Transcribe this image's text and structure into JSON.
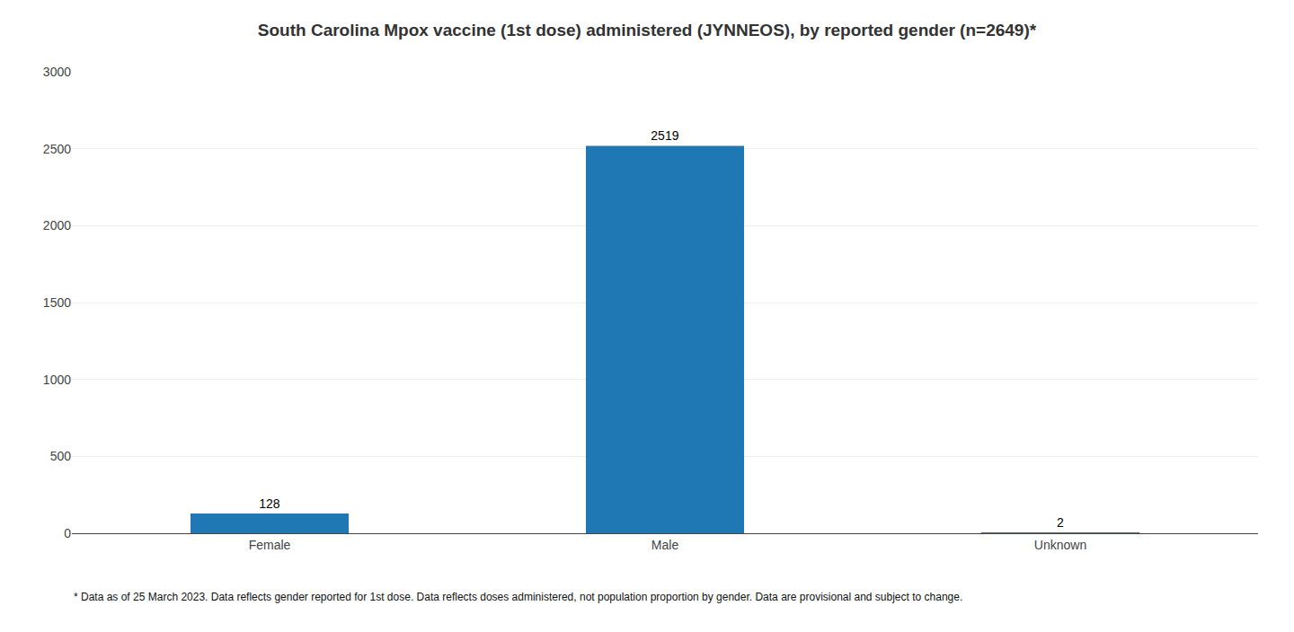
{
  "chart_data": {
    "type": "bar",
    "title": "South Carolina Mpox vaccine (1st dose) administered (JYNNEOS), by reported gender (n=2649)*",
    "categories": [
      "Female",
      "Male",
      "Unknown"
    ],
    "values": [
      128,
      2519,
      2
    ],
    "ylim": [
      0,
      3000
    ],
    "yticks": [
      0,
      500,
      1000,
      1500,
      2000,
      2500,
      3000
    ],
    "grid": true,
    "data_labels": true,
    "footnote": "* Data as of 25 March 2023. Data reflects gender reported for 1st dose. Data reflects doses administered, not population proportion by gender. Data are provisional and subject to change."
  }
}
